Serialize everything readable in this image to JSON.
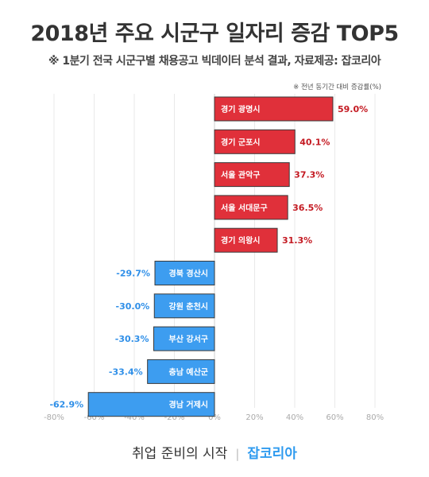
{
  "title": "2018년 주요 시군구 일자리 증감 TOP5",
  "subtitle": "※ 1분기 전국 시군구별 채용공고 빅데이터 분석 결과, 자료제공: 잡코리아",
  "note": "※ 전년 동기간 대비 증감률(%)",
  "footer": {
    "tagline": "취업 준비의 시작",
    "separator": "|",
    "brand": "잡코리아"
  },
  "colors": {
    "positive_bar": "#e0303a",
    "positive_label": "#c41a22",
    "negative_bar": "#3d9df0",
    "negative_label": "#2f8fe8"
  },
  "chart_data": {
    "type": "bar",
    "orientation": "horizontal",
    "categories": [
      "경기 광명시",
      "경기 군포시",
      "서울 관악구",
      "서울 서대문구",
      "경기 의왕시",
      "경북 경산시",
      "강원 춘천시",
      "부산 강서구",
      "충남 예산군",
      "경남 거제시"
    ],
    "values": [
      59.0,
      40.1,
      37.3,
      36.5,
      31.3,
      -29.7,
      -30.0,
      -30.3,
      -33.4,
      -62.9
    ],
    "value_labels": [
      "59.0%",
      "40.1%",
      "37.3%",
      "36.5%",
      "31.3%",
      "-29.7%",
      "-30.0%",
      "-30.3%",
      "-33.4%",
      "-62.9%"
    ],
    "xlim": [
      -80,
      80
    ],
    "xticks": [
      -80,
      -60,
      -40,
      -20,
      0,
      20,
      40,
      60,
      80
    ],
    "xtick_labels": [
      "-80%",
      "-60%",
      "-40%",
      "-20%",
      "0%",
      "20%",
      "40%",
      "60%",
      "80%"
    ],
    "grid": true
  }
}
